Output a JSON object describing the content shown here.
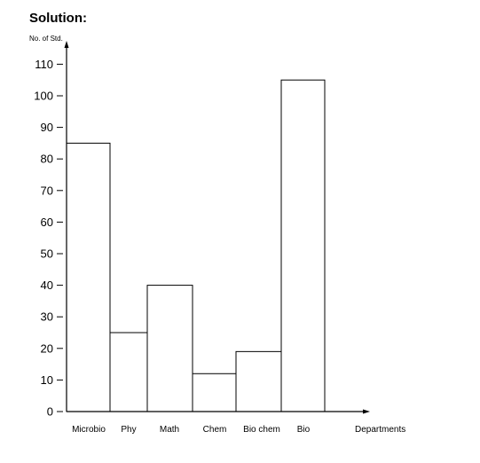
{
  "heading": "Solution:",
  "chart_data": {
    "type": "bar",
    "title": "",
    "ylabel": "No. of Std.",
    "xlabel": "Departments",
    "categories": [
      "Microbio",
      "Phy",
      "Math",
      "Chem",
      "Bio chem",
      "Bio"
    ],
    "values": [
      85,
      25,
      40,
      12,
      19,
      105
    ],
    "yticks": [
      0,
      10,
      20,
      30,
      40,
      50,
      60,
      70,
      80,
      90,
      100,
      110
    ],
    "ylim": [
      0,
      110
    ],
    "grid": false,
    "legend": "none",
    "bar_fill": "#ffffff",
    "bar_stroke": "#000000"
  }
}
